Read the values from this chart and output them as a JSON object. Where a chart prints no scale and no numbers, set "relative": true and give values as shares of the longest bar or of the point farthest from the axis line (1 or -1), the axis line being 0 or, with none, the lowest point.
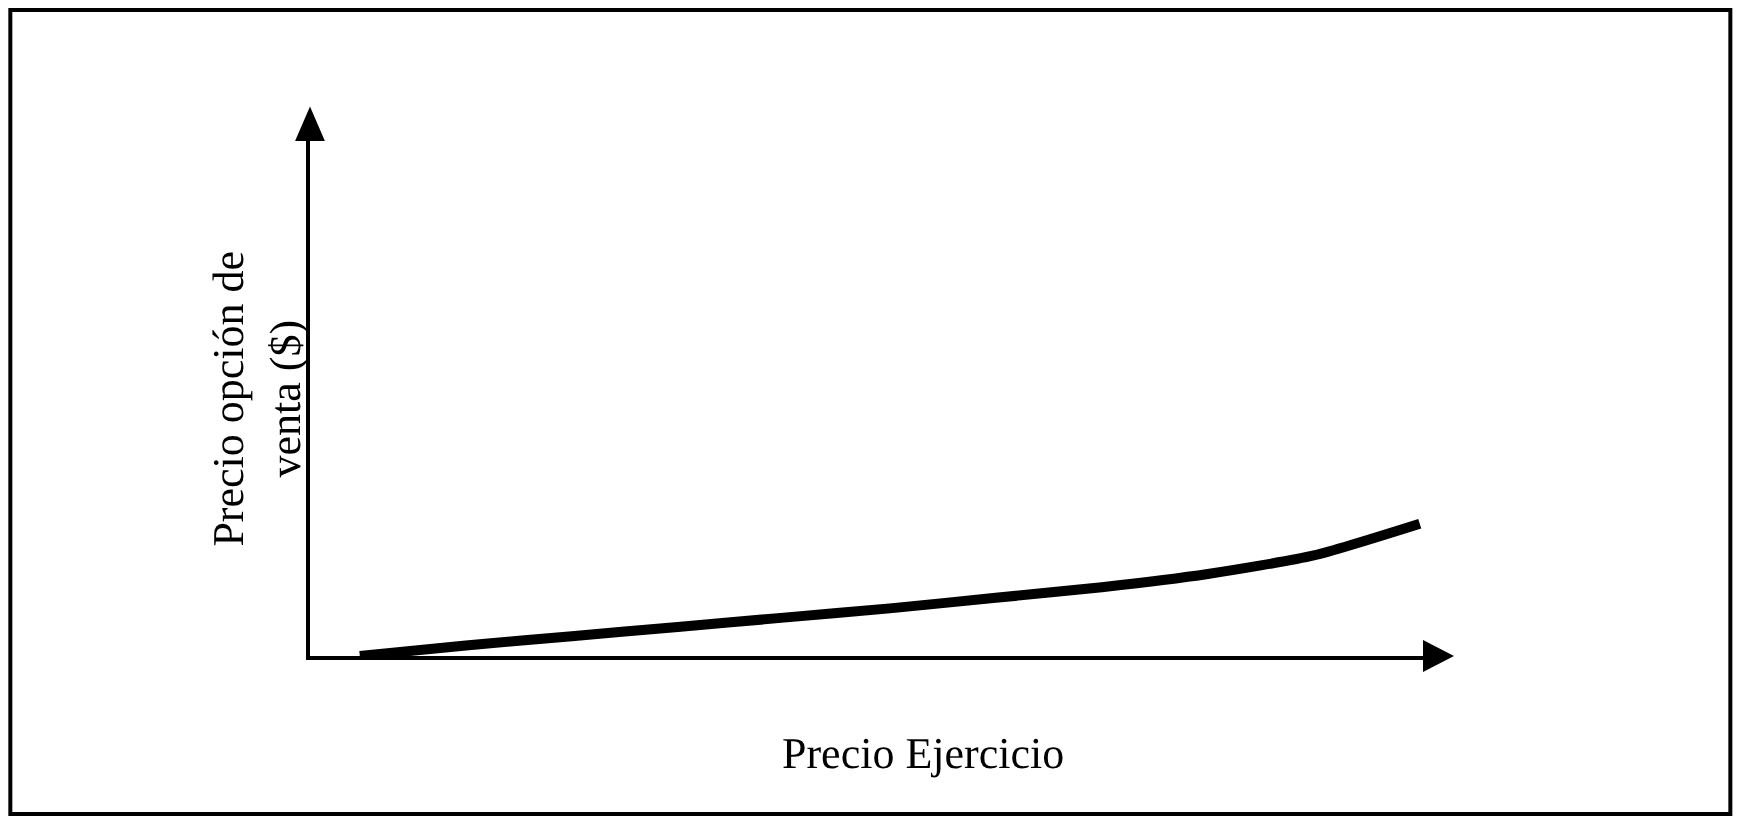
{
  "chart_data": {
    "type": "line",
    "relative": true,
    "xlabel": "Precio Ejercicio",
    "ylabel": "Precio opción de venta ($)",
    "categories": [
      null,
      null,
      null,
      null,
      null,
      null,
      null,
      null,
      null,
      null,
      null
    ],
    "series": [
      {
        "color": "#000000",
        "values": [
          0,
          0.08,
          0.15,
          0.22,
          0.29,
          0.36,
          0.44,
          0.52,
          0.62,
          0.76,
          1
        ]
      }
    ],
    "marker": "none",
    "line_style": "solid"
  }
}
